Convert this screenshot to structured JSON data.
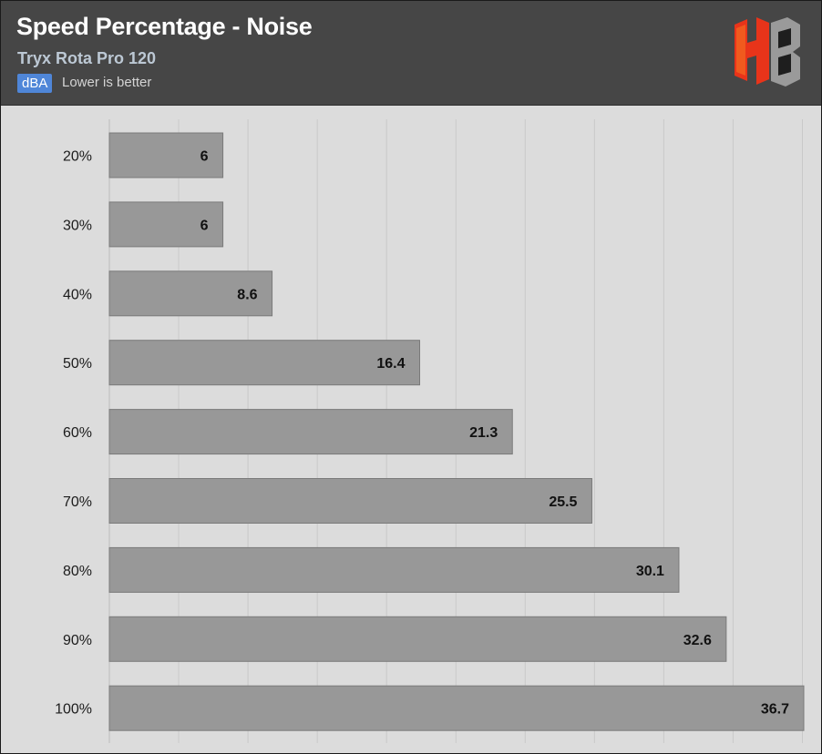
{
  "header": {
    "title": "Speed Percentage - Noise",
    "subtitle": "Tryx Rota Pro 120",
    "unit_badge": "dBA",
    "hint": "Lower is better"
  },
  "logo": {
    "icon": "hb-logo-icon",
    "colors": [
      "#e8341a",
      "#f05a1e",
      "#9a9a9a",
      "#1e1e1e"
    ]
  },
  "colors": {
    "header_bg": "#464646",
    "plot_bg": "#dcdcdc",
    "bar": "#989898",
    "bar_border": "#7a7a7a",
    "grid": "#c9c9c9",
    "badge": "#4f86d8"
  },
  "chart_data": {
    "type": "bar",
    "orientation": "horizontal",
    "categories": [
      "20%",
      "30%",
      "40%",
      "50%",
      "60%",
      "70%",
      "80%",
      "90%",
      "100%"
    ],
    "values": [
      6,
      6,
      8.6,
      16.4,
      21.3,
      25.5,
      30.1,
      32.6,
      36.7
    ],
    "xlim": [
      0,
      36.7
    ],
    "grid": true,
    "data_labels": true
  }
}
